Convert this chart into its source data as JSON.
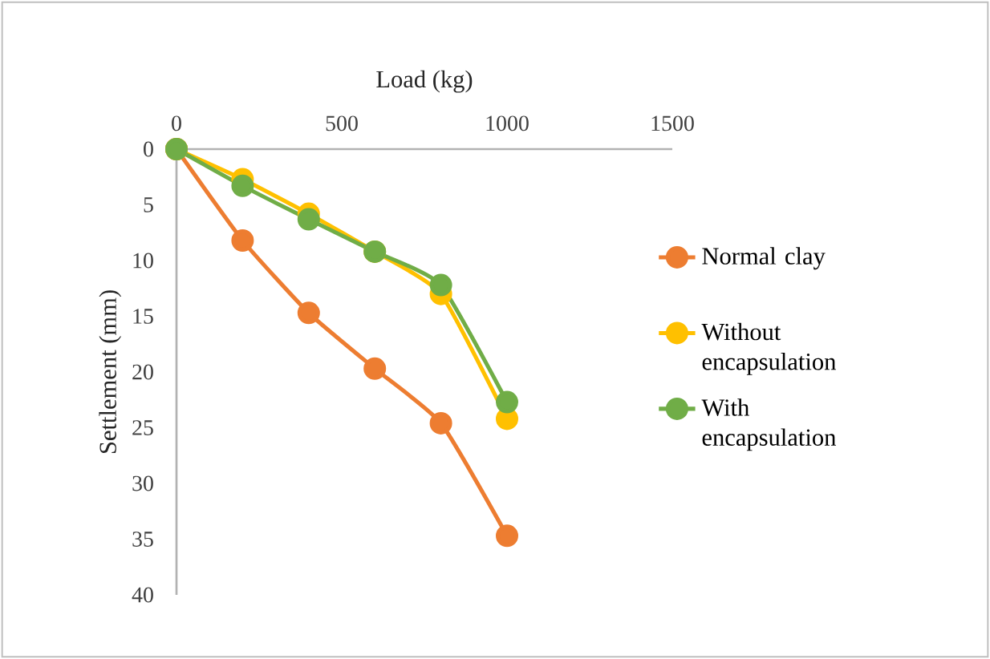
{
  "chart_data": {
    "type": "line",
    "xlabel": "Load (kg)",
    "ylabel": "Settlement (mm)",
    "x": [
      0,
      200,
      400,
      600,
      800,
      1000
    ],
    "series": [
      {
        "name": "Normal clay",
        "color": "#ed7d31",
        "values": [
          0,
          8.2,
          14.7,
          19.7,
          24.6,
          34.7
        ]
      },
      {
        "name": "Without encapsulation",
        "color": "#ffc000",
        "values": [
          0,
          2.7,
          5.8,
          9.2,
          13.0,
          24.2
        ]
      },
      {
        "name": "With encapsulation",
        "color": "#70ad47",
        "values": [
          0,
          3.3,
          6.3,
          9.2,
          12.2,
          22.7
        ]
      }
    ],
    "xlim": [
      0,
      1500
    ],
    "xticks": [
      0,
      500,
      1000,
      1500
    ],
    "ylim": [
      40,
      0
    ],
    "yticks": [
      0,
      5,
      10,
      15,
      20,
      25,
      30,
      35,
      40
    ],
    "legend": "right",
    "marker": "circle",
    "line_style": "solid",
    "grid": false
  }
}
